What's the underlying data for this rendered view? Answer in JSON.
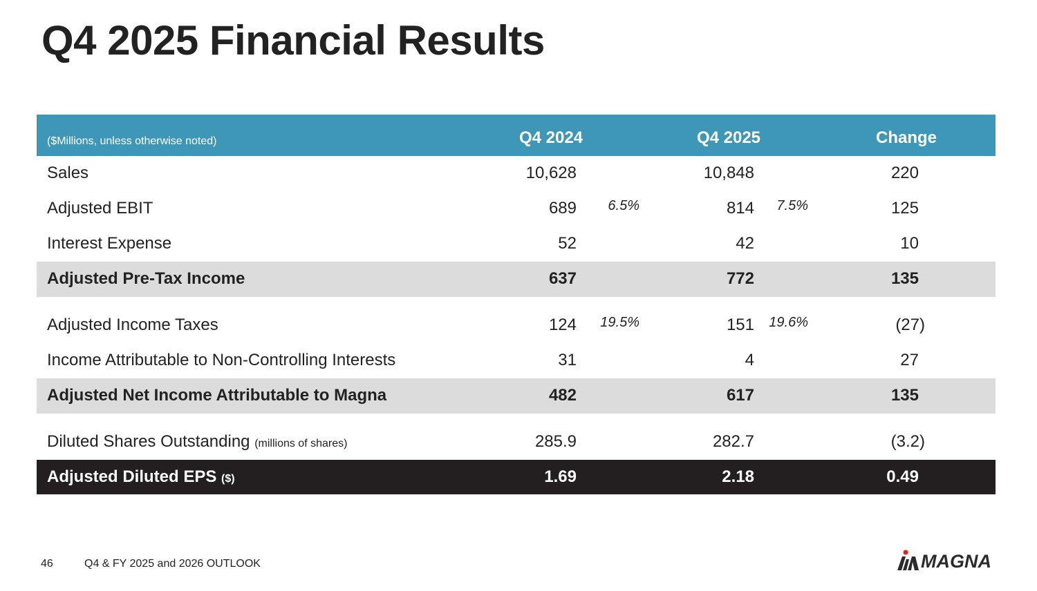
{
  "title": "Q4 2025 Financial Results",
  "table": {
    "header": {
      "label": "($Millions, unless otherwise noted)",
      "columns": [
        "Q4 2024",
        "Q4 2025",
        "Change"
      ]
    },
    "rows": [
      {
        "label": "Sales",
        "q4_2024": "10,628",
        "q4_2025": "10,848",
        "change": "220"
      },
      {
        "label": "Adjusted EBIT",
        "q4_2024": "689",
        "pct_2024": "6.5%",
        "q4_2025": "814",
        "pct_2025": "7.5%",
        "change": "125"
      },
      {
        "label": "Interest Expense",
        "q4_2024": "52",
        "q4_2025": "42",
        "change": "10"
      },
      {
        "label": "Adjusted Pre-Tax Income",
        "q4_2024": "637",
        "q4_2025": "772",
        "change": "135"
      },
      {
        "label": "Adjusted Income Taxes",
        "q4_2024": "124",
        "pct_2024": "19.5%",
        "q4_2025": "151",
        "pct_2025": "19.6%",
        "change": "(27)"
      },
      {
        "label": "Income Attributable to Non-Controlling Interests",
        "q4_2024": "31",
        "q4_2025": "4",
        "change": "27"
      },
      {
        "label": "Adjusted Net Income Attributable to Magna",
        "q4_2024": "482",
        "q4_2025": "617",
        "change": "135"
      },
      {
        "label": "Diluted Shares Outstanding",
        "sublabel": "(millions of shares)",
        "q4_2024": "285.9",
        "q4_2025": "282.7",
        "change": "(3.2)"
      },
      {
        "label": "Adjusted Diluted EPS",
        "sublabel": "($)",
        "q4_2024": "1.69",
        "q4_2025": "2.18",
        "change": "0.49"
      }
    ]
  },
  "footer": {
    "page_number": "46",
    "text": "Q4 & FY 2025 and 2026 OUTLOOK"
  },
  "logo": {
    "text": "MAGNA",
    "accent_color": "#e2231a"
  },
  "colors": {
    "header_bg": "#3e97b7",
    "highlight_bg": "#dcdcdd",
    "eps_bg": "#231f20"
  }
}
